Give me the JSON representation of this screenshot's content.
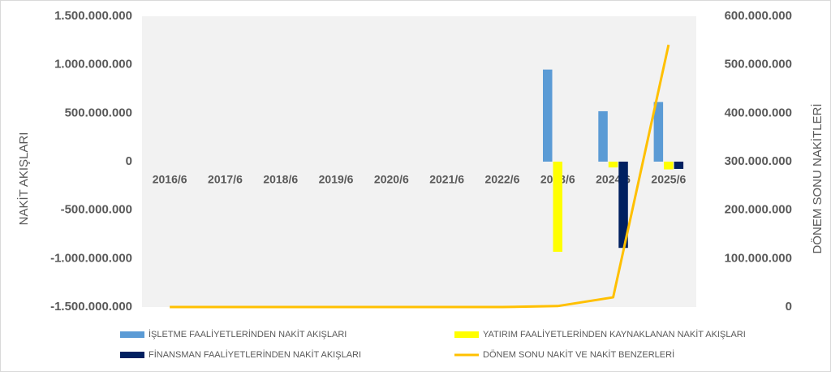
{
  "chart_data": {
    "type": "bar",
    "categories": [
      "2016/6",
      "2017/6",
      "2018/6",
      "2019/6",
      "2020/6",
      "2021/6",
      "2022/6",
      "2023/6",
      "2024/6",
      "2025/6"
    ],
    "y_label": "NAKİT AKIŞLARI",
    "y2_label": "DÖNEM SONU NAKİTLERİ",
    "ylim": [
      -1500000000,
      1500000000
    ],
    "yticks": [
      {
        "value": -1500000000,
        "label": "-1.500.000.000"
      },
      {
        "value": -1000000000,
        "label": "-1.000.000.000"
      },
      {
        "value": -500000000,
        "label": "-500.000.000"
      },
      0,
      {
        "value": 500000000,
        "label": "500.000.000"
      },
      {
        "value": 1000000000,
        "label": "1.000.000.000"
      },
      {
        "value": 1500000000,
        "label": "1.500.000.000"
      }
    ],
    "y2lim": [
      0,
      600000000
    ],
    "y2ticks": [
      0,
      {
        "value": 100000000,
        "label": "100.000.000"
      },
      {
        "value": 200000000,
        "label": "200.000.000"
      },
      {
        "value": 300000000,
        "label": "300.000.000"
      },
      {
        "value": 400000000,
        "label": "400.000.000"
      },
      {
        "value": 500000000,
        "label": "500.000.000"
      },
      {
        "value": 600000000,
        "label": "600.000.000"
      }
    ],
    "series": [
      {
        "name": "İŞLETME FAALİYETLERİNDEN NAKİT AKIŞLARI",
        "color": "#5b9bd5",
        "values": [
          0,
          0,
          0,
          0,
          0,
          0,
          0,
          950000000,
          520000000,
          615000000
        ]
      },
      {
        "name": "YATIRIM FAALİYETLERİNDEN KAYNAKLANAN NAKİT AKIŞLARI",
        "color": "#ffff00",
        "values": [
          0,
          0,
          0,
          0,
          0,
          0,
          0,
          -930000000,
          -60000000,
          -80000000
        ]
      },
      {
        "name": "FİNANSMAN FAALİYETLERİNDEN NAKİT AKIŞLARI",
        "color": "#002060",
        "values": [
          0,
          0,
          0,
          0,
          0,
          0,
          0,
          0,
          -890000000,
          -75000000
        ]
      },
      {
        "name": "DÖNEM SONU NAKİT VE NAKİT BENZERLERİ",
        "color": "#ffc000",
        "type": "line",
        "axis": "y2",
        "values": [
          0,
          0,
          0,
          0,
          0,
          0,
          0,
          2000000,
          20000000,
          541000000
        ]
      }
    ]
  }
}
